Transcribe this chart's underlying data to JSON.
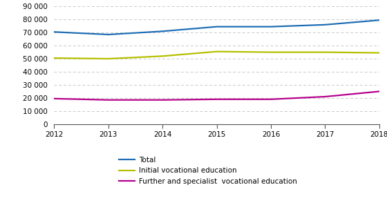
{
  "years": [
    2012,
    2013,
    2014,
    2015,
    2016,
    2017,
    2018
  ],
  "total": [
    70500,
    68500,
    71000,
    74500,
    74500,
    76000,
    79500
  ],
  "initial": [
    50500,
    50000,
    52000,
    55500,
    55000,
    55000,
    54500
  ],
  "further": [
    19500,
    18500,
    18500,
    19000,
    19000,
    21000,
    25000
  ],
  "colors": {
    "total": "#1f6eb5",
    "initial": "#b5c000",
    "further": "#b5008c"
  },
  "ylim": [
    0,
    90000
  ],
  "yticks": [
    0,
    10000,
    20000,
    30000,
    40000,
    50000,
    60000,
    70000,
    80000,
    90000
  ],
  "xticks": [
    2012,
    2013,
    2014,
    2015,
    2016,
    2017,
    2018
  ],
  "legend_labels": [
    "Total",
    "Initial vocational education",
    "Further and specialist  vocational education"
  ],
  "grid_color": "#c8c8c8",
  "background_color": "#ffffff",
  "line_width": 1.6
}
